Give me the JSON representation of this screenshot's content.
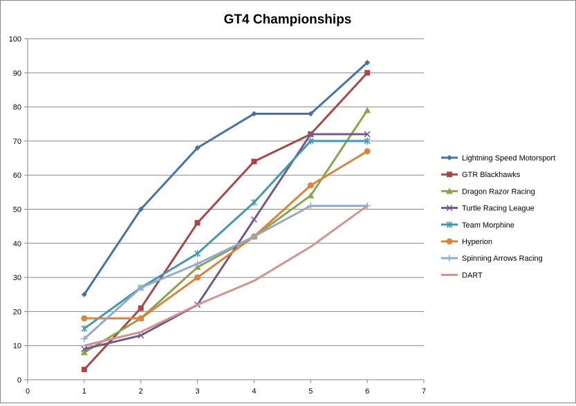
{
  "chart_data": {
    "type": "line",
    "title": "GT4 Championships",
    "xlabel": "",
    "ylabel": "",
    "xlim": [
      0,
      7
    ],
    "ylim": [
      0,
      100
    ],
    "x_ticks": [
      0,
      1,
      2,
      3,
      4,
      5,
      6,
      7
    ],
    "y_ticks": [
      0,
      10,
      20,
      30,
      40,
      50,
      60,
      70,
      80,
      90,
      100
    ],
    "grid": "horizontal",
    "legend_position": "right",
    "x": [
      1,
      2,
      3,
      4,
      5,
      6
    ],
    "series": [
      {
        "name": "Lightning Speed Motorsport",
        "color": "#4572A7",
        "marker": "diamond",
        "values": [
          25,
          50,
          68,
          78,
          78,
          93
        ]
      },
      {
        "name": "GTR Blackhawks",
        "color": "#AA4643",
        "marker": "square",
        "values": [
          3,
          21,
          46,
          64,
          72,
          90
        ]
      },
      {
        "name": "Dragon Razor Racing",
        "color": "#89A54E",
        "marker": "triangle",
        "values": [
          8,
          18,
          33,
          42,
          54,
          79
        ]
      },
      {
        "name": "Turtle Racing League",
        "color": "#71588F",
        "marker": "x",
        "values": [
          9,
          13,
          22,
          47,
          72,
          72
        ]
      },
      {
        "name": "Team Morphine",
        "color": "#4198AF",
        "marker": "asterisk",
        "values": [
          15,
          27,
          37,
          52,
          70,
          70
        ]
      },
      {
        "name": "Hyperion",
        "color": "#DB843D",
        "marker": "circle",
        "values": [
          18,
          18,
          30,
          42,
          57,
          67
        ]
      },
      {
        "name": "Spinning Arrows Racing",
        "color": "#93A9CF",
        "marker": "plus",
        "values": [
          12,
          27,
          34,
          42,
          51,
          51
        ]
      },
      {
        "name": "DART",
        "color": "#D19392",
        "marker": "none",
        "values": [
          10,
          14,
          22,
          29,
          39,
          51
        ]
      }
    ]
  }
}
